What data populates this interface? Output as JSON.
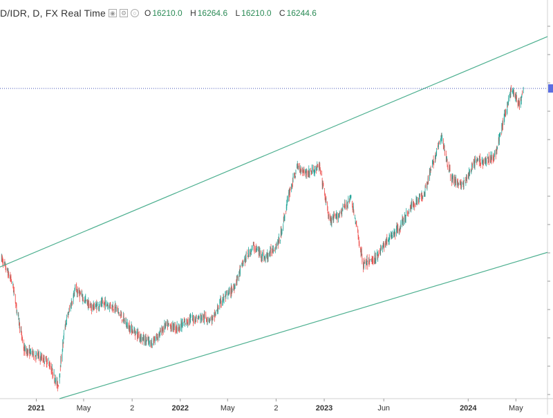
{
  "header": {
    "symbol": "D/IDR, D, FX Real Time",
    "ohlc": [
      {
        "label": "O",
        "value": "16210.0"
      },
      {
        "label": "H",
        "value": "16264.6"
      },
      {
        "label": "L",
        "value": "16210.0"
      },
      {
        "label": "C",
        "value": "16244.6"
      }
    ]
  },
  "colors": {
    "up": "#26a69a",
    "down": "#ef5350",
    "channel": "#4caf8f",
    "price_line": "#3f51b5",
    "price_tag": "#5b6ee1"
  },
  "chart_data": {
    "type": "candlestick",
    "x_tick_labels": [
      {
        "label": "2021",
        "date": "2021-01-01",
        "major": true
      },
      {
        "label": "May",
        "date": "2021-05-01",
        "major": false
      },
      {
        "label": "2",
        "date": "2021-09-01",
        "major": false
      },
      {
        "label": "2022",
        "date": "2022-01-01",
        "major": true
      },
      {
        "label": "May",
        "date": "2022-05-01",
        "major": false
      },
      {
        "label": "2",
        "date": "2022-09-01",
        "major": false
      },
      {
        "label": "2023",
        "date": "2023-01-01",
        "major": true
      },
      {
        "label": "Jun",
        "date": "2023-06-01",
        "major": false
      },
      {
        "label": "2024",
        "date": "2024-01-01",
        "major": true
      },
      {
        "label": "May",
        "date": "2024-05-01",
        "major": false
      }
    ],
    "x_range": [
      "2020-10-01",
      "2024-07-20"
    ],
    "y_range": [
      13700,
      16800
    ],
    "price_trend": [
      [
        "2020-10-05",
        14850
      ],
      [
        "2020-11-01",
        14650
      ],
      [
        "2020-12-01",
        14100
      ],
      [
        "2021-01-05",
        14050
      ],
      [
        "2021-02-01",
        14000
      ],
      [
        "2021-02-25",
        13800
      ],
      [
        "2021-03-15",
        14300
      ],
      [
        "2021-04-10",
        14600
      ],
      [
        "2021-05-20",
        14450
      ],
      [
        "2021-06-25",
        14480
      ],
      [
        "2021-07-20",
        14450
      ],
      [
        "2021-08-20",
        14300
      ],
      [
        "2021-09-25",
        14200
      ],
      [
        "2021-10-20",
        14150
      ],
      [
        "2021-11-25",
        14300
      ],
      [
        "2021-12-25",
        14280
      ],
      [
        "2022-01-25",
        14350
      ],
      [
        "2022-02-25",
        14370
      ],
      [
        "2022-03-25",
        14350
      ],
      [
        "2022-04-15",
        14500
      ],
      [
        "2022-05-15",
        14600
      ],
      [
        "2022-06-10",
        14820
      ],
      [
        "2022-07-05",
        14950
      ],
      [
        "2022-08-05",
        14850
      ],
      [
        "2022-09-10",
        15000
      ],
      [
        "2022-10-05",
        15400
      ],
      [
        "2022-10-25",
        15600
      ],
      [
        "2022-11-20",
        15550
      ],
      [
        "2022-12-20",
        15600
      ],
      [
        "2023-01-15",
        15150
      ],
      [
        "2023-02-05",
        15200
      ],
      [
        "2023-03-10",
        15350
      ],
      [
        "2023-04-10",
        14800
      ],
      [
        "2023-05-10",
        14850
      ],
      [
        "2023-06-10",
        15000
      ],
      [
        "2023-07-10",
        15100
      ],
      [
        "2023-08-10",
        15280
      ],
      [
        "2023-09-10",
        15380
      ],
      [
        "2023-10-25",
        15850
      ],
      [
        "2023-11-20",
        15500
      ],
      [
        "2023-12-20",
        15450
      ],
      [
        "2024-01-20",
        15650
      ],
      [
        "2024-02-15",
        15650
      ],
      [
        "2024-03-10",
        15700
      ],
      [
        "2024-04-20",
        16250
      ],
      [
        "2024-05-10",
        16100
      ],
      [
        "2024-05-20",
        16250
      ]
    ],
    "last_price": 16244.6,
    "channel_upper": [
      [
        "2020-10-01",
        14780
      ],
      [
        "2024-07-20",
        16670
      ]
    ],
    "channel_lower": [
      [
        "2021-03-01",
        13700
      ],
      [
        "2024-07-20",
        14900
      ]
    ]
  }
}
